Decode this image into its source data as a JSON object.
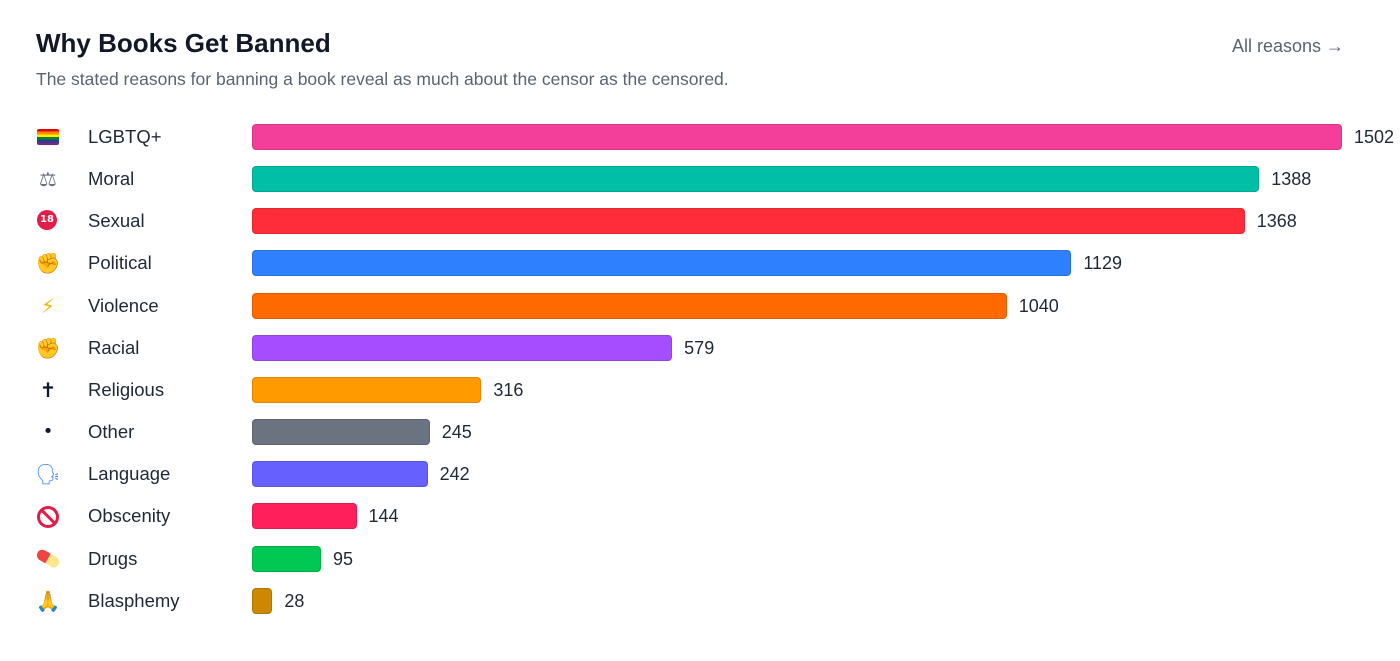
{
  "header": {
    "title": "Why Books Get Banned",
    "subtitle": "The stated reasons for banning a book reveal as much about the censor as the censored.",
    "link_label": "All reasons →"
  },
  "chart_data": {
    "type": "bar",
    "orientation": "horizontal",
    "title": "Why Books Get Banned",
    "subtitle": "The stated reasons for banning a book reveal as much about the censor as the censored.",
    "categories": [
      "LGBTQ+",
      "Moral",
      "Sexual",
      "Political",
      "Violence",
      "Racial",
      "Religious",
      "Other",
      "Language",
      "Obscenity",
      "Drugs",
      "Blasphemy"
    ],
    "values": [
      1502,
      1388,
      1368,
      1129,
      1040,
      579,
      316,
      245,
      242,
      144,
      95,
      28
    ],
    "icons": [
      "rainbow-flag-icon",
      "balance-scale-icon",
      "no-under-18-icon",
      "raised-fist-icon",
      "lightning-icon",
      "raised-fist-dark-icon",
      "cross-icon",
      "bullet-icon",
      "speaking-head-icon",
      "prohibited-icon",
      "pill-icon",
      "folded-hands-icon"
    ],
    "icon_glyphs": [
      "",
      "⚖",
      "18",
      "✊",
      "⚡",
      "✊",
      "✝",
      "•",
      "🗣",
      "",
      "",
      "🙏"
    ],
    "colors": [
      "#f43f9a",
      "#00bfa6",
      "#ff2d3a",
      "#2f80ff",
      "#ff6a00",
      "#a64dff",
      "#ff9a00",
      "#6b7280",
      "#6560ff",
      "#ff1f5a",
      "#00c853",
      "#cc8800"
    ],
    "xlim": [
      0,
      1502
    ],
    "grid": false,
    "legend": "none",
    "data_labels": true
  }
}
